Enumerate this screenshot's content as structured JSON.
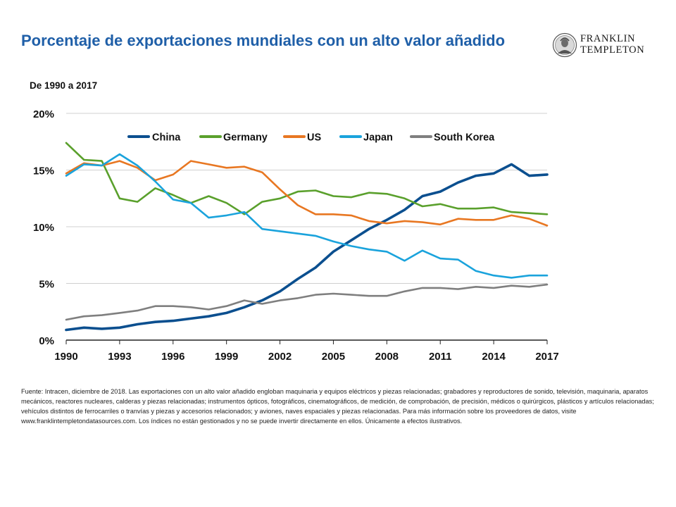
{
  "header": {
    "title": "Porcentaje de exportaciones mundiales con un alto valor añadido",
    "subtitle": "De 1990 a 2017"
  },
  "logo": {
    "text": "FRANKLIN\nTEMPLETON"
  },
  "footnote": "Fuente: Intracen, diciembre de 2018. Las exportaciones con un alto valor añadido engloban maquinaria y equipos eléctricos y piezas relacionadas; grabadores y reproductores de sonido, televisión, maquinaria, aparatos mecánicos, reactores nucleares, calderas y piezas relacionadas; instrumentos ópticos, fotográficos, cinematográficos, de medición, de comprobación, de precisión, médicos o quirúrgicos, plásticos y artículos relacionadas; vehículos distintos de ferrocarriles o tranvías y piezas y accesorios relacionados; y aviones, naves espaciales y piezas relacionadas. Para más información sobre los proveedores de datos, visite www.franklintempletondatasources.com. Los índices no están gestionados y no se puede invertir directamente en ellos. Únicamente a efectos ilustrativos.",
  "chart_data": {
    "type": "line",
    "title": "Porcentaje de exportaciones mundiales con un alto valor añadido",
    "subtitle": "De 1990 a 2017",
    "x": [
      1990,
      1991,
      1992,
      1993,
      1994,
      1995,
      1996,
      1997,
      1998,
      1999,
      2000,
      2001,
      2002,
      2003,
      2004,
      2005,
      2006,
      2007,
      2008,
      2009,
      2010,
      2011,
      2012,
      2013,
      2014,
      2015,
      2016,
      2017
    ],
    "x_ticks": [
      1990,
      1993,
      1996,
      1999,
      2002,
      2005,
      2008,
      2011,
      2014,
      2017
    ],
    "y_ticks": [
      0,
      5,
      10,
      15,
      20
    ],
    "y_tick_labels": [
      "0%",
      "5%",
      "10%",
      "15%",
      "20%"
    ],
    "ylim": [
      0,
      20
    ],
    "grid": "horizontal",
    "legend_position": "top",
    "series": [
      {
        "name": "China",
        "color": "#0b4f8f",
        "values": [
          0.9,
          1.1,
          1.0,
          1.1,
          1.4,
          1.6,
          1.7,
          1.9,
          2.1,
          2.4,
          2.9,
          3.5,
          4.3,
          5.4,
          6.4,
          7.8,
          8.8,
          9.8,
          10.6,
          11.5,
          12.7,
          13.1,
          13.9,
          14.5,
          14.7,
          15.5,
          14.5,
          14.6
        ]
      },
      {
        "name": "Germany",
        "color": "#5aa02c",
        "values": [
          17.4,
          15.9,
          15.8,
          12.5,
          12.2,
          13.4,
          12.8,
          12.1,
          12.7,
          12.1,
          11.1,
          12.2,
          12.5,
          13.1,
          13.2,
          12.7,
          12.6,
          13.0,
          12.9,
          12.5,
          11.8,
          12.0,
          11.6,
          11.6,
          11.7,
          11.3,
          11.2,
          11.1
        ]
      },
      {
        "name": "US",
        "color": "#e87722",
        "values": [
          14.7,
          15.6,
          15.4,
          15.8,
          15.2,
          14.1,
          14.6,
          15.8,
          15.5,
          15.2,
          15.3,
          14.8,
          13.3,
          11.9,
          11.1,
          11.1,
          11.0,
          10.5,
          10.3,
          10.5,
          10.4,
          10.2,
          10.7,
          10.6,
          10.6,
          11.0,
          10.7,
          10.1
        ]
      },
      {
        "name": "Japan",
        "color": "#1aa3dc",
        "values": [
          14.5,
          15.5,
          15.4,
          16.4,
          15.4,
          14.0,
          12.4,
          12.1,
          10.8,
          11.0,
          11.3,
          9.8,
          9.6,
          9.4,
          9.2,
          8.7,
          8.3,
          8.0,
          7.8,
          7.0,
          7.9,
          7.2,
          7.1,
          6.1,
          5.7,
          5.5,
          5.7,
          5.7
        ]
      },
      {
        "name": "South Korea",
        "color": "#7f7f7f",
        "values": [
          1.8,
          2.1,
          2.2,
          2.4,
          2.6,
          3.0,
          3.0,
          2.9,
          2.7,
          3.0,
          3.5,
          3.2,
          3.5,
          3.7,
          4.0,
          4.1,
          4.0,
          3.9,
          3.9,
          4.3,
          4.6,
          4.6,
          4.5,
          4.7,
          4.6,
          4.8,
          4.7,
          4.9
        ]
      }
    ]
  }
}
